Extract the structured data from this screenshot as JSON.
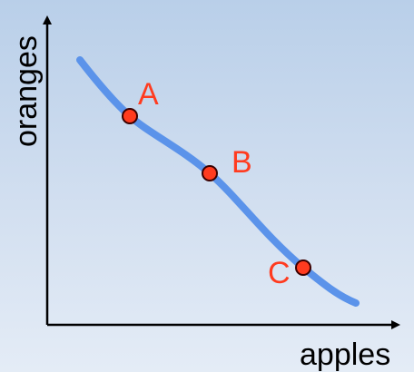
{
  "diagram": {
    "x_axis_label": "apples",
    "y_axis_label": "oranges",
    "points": [
      {
        "label": "A"
      },
      {
        "label": "B"
      },
      {
        "label": "C"
      }
    ],
    "colors": {
      "curve": "#5b93ea",
      "points": "#ff3b1f",
      "labels": "#ff3b1f",
      "axes": "#000000"
    }
  }
}
